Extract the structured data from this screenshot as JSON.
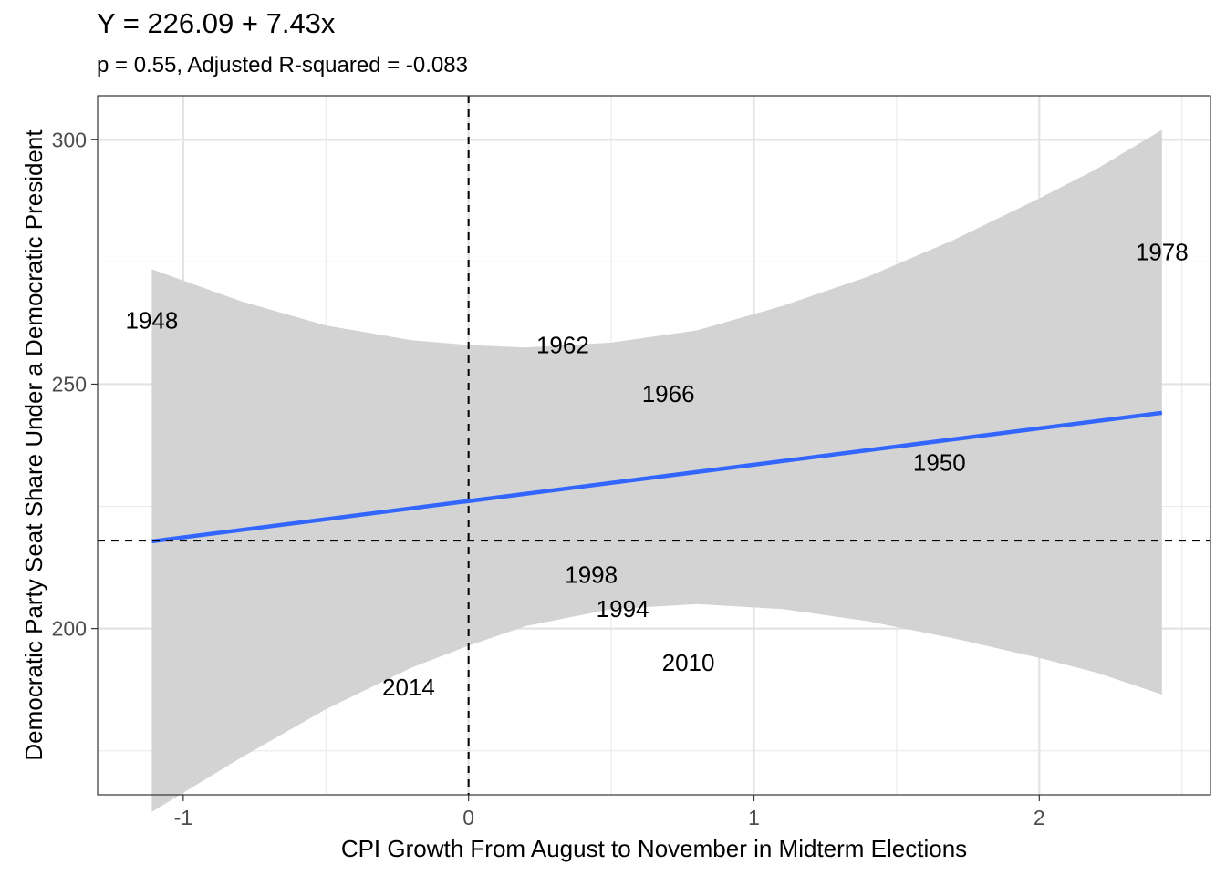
{
  "chart_data": {
    "type": "scatter",
    "title": "Y = 226.09 + 7.43x",
    "subtitle": "p = 0.55, Adjusted R-squared = -0.083",
    "xlabel": "CPI Growth From August to November in Midterm Elections",
    "ylabel": "Democratic Party Seat Share Under a Democratic President",
    "xlim": [
      -1.3,
      2.6
    ],
    "ylim": [
      166,
      309
    ],
    "x_ticks": [
      -1,
      0,
      1,
      2
    ],
    "x_tick_labels": [
      "-1",
      "0",
      "1",
      "2"
    ],
    "y_ticks": [
      200,
      250,
      300
    ],
    "y_tick_labels": [
      "200",
      "250",
      "300"
    ],
    "x_minor_ticks": [
      -0.5,
      0.5,
      1.5,
      2.5
    ],
    "y_minor_ticks": [
      175,
      225,
      275
    ],
    "grid": true,
    "points": [
      {
        "label": "1948",
        "x": -1.11,
        "y": 263
      },
      {
        "label": "1962",
        "x": 0.33,
        "y": 258
      },
      {
        "label": "1966",
        "x": 0.7,
        "y": 248
      },
      {
        "label": "1950",
        "x": 1.65,
        "y": 234
      },
      {
        "label": "1978",
        "x": 2.43,
        "y": 277
      },
      {
        "label": "1998",
        "x": 0.43,
        "y": 211
      },
      {
        "label": "1994",
        "x": 0.54,
        "y": 204
      },
      {
        "label": "2010",
        "x": 0.77,
        "y": 193
      },
      {
        "label": "2014",
        "x": -0.21,
        "y": 188
      }
    ],
    "fit_line": {
      "intercept": 226.09,
      "slope": 7.43,
      "x_range": [
        -1.11,
        2.43
      ],
      "color": "#3366FF"
    },
    "confidence_band": {
      "color": "#d3d3d3",
      "points": [
        {
          "x": -1.11,
          "lower": 162.5,
          "upper": 273.5
        },
        {
          "x": -0.8,
          "lower": 173.5,
          "upper": 267.0
        },
        {
          "x": -0.5,
          "lower": 183.5,
          "upper": 262.0
        },
        {
          "x": -0.2,
          "lower": 192.0,
          "upper": 259.0
        },
        {
          "x": 0.0,
          "lower": 196.5,
          "upper": 258.0
        },
        {
          "x": 0.2,
          "lower": 200.5,
          "upper": 257.5
        },
        {
          "x": 0.5,
          "lower": 204.0,
          "upper": 258.5
        },
        {
          "x": 0.8,
          "lower": 205.0,
          "upper": 261.0
        },
        {
          "x": 1.1,
          "lower": 204.0,
          "upper": 266.0
        },
        {
          "x": 1.4,
          "lower": 201.5,
          "upper": 272.0
        },
        {
          "x": 1.7,
          "lower": 198.0,
          "upper": 279.5
        },
        {
          "x": 2.0,
          "lower": 194.0,
          "upper": 288.0
        },
        {
          "x": 2.2,
          "lower": 191.0,
          "upper": 294.0
        },
        {
          "x": 2.43,
          "lower": 186.5,
          "upper": 302.0
        }
      ]
    },
    "reference_lines": {
      "vertical_x": 0,
      "horizontal_y": 218
    }
  }
}
